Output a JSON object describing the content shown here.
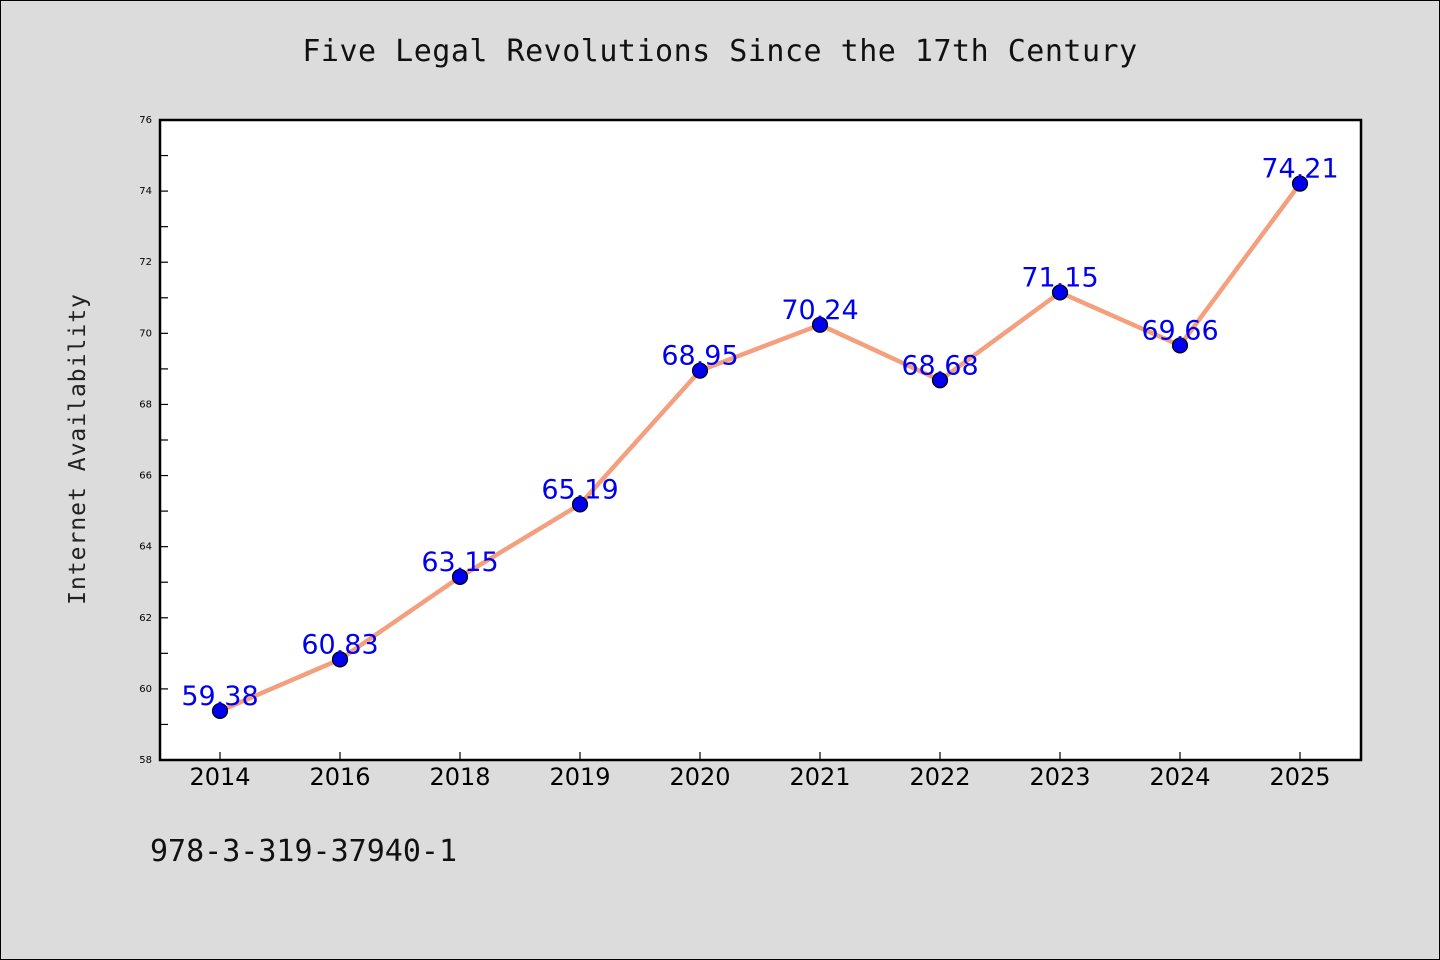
{
  "chart_data": {
    "type": "line",
    "title": "Five Legal Revolutions Since the 17th Century",
    "xlabel": "",
    "ylabel": "Internet Availability",
    "categories": [
      "2014",
      "2016",
      "2018",
      "2019",
      "2020",
      "2021",
      "2022",
      "2023",
      "2024",
      "2025"
    ],
    "series": [
      {
        "values": [
          59.38,
          60.83,
          63.15,
          65.19,
          68.95,
          70.24,
          68.68,
          71.15,
          69.66,
          74.21
        ],
        "labels": [
          "59.38",
          "60.83",
          "63.15",
          "65.19",
          "68.95",
          "70.24",
          "68.68",
          "71.15",
          "69.66",
          "74.21"
        ]
      }
    ],
    "ylim": [
      58,
      76
    ],
    "yticks": [
      "58",
      "60",
      "62",
      "64",
      "66",
      "68",
      "70",
      "72",
      "74",
      "76"
    ],
    "grid": false,
    "line_color": "#f4a07e",
    "marker_color": "#0000ee",
    "label_color": "#0000ee"
  },
  "footer": {
    "isbn": "978-3-319-37940-1"
  }
}
